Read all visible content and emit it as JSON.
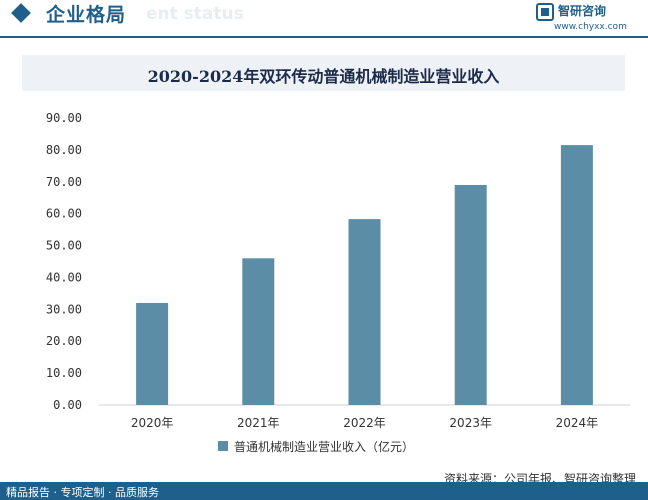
{
  "header": {
    "title": "企业格局",
    "subtitle": "ent status",
    "brand_name": "智研咨询",
    "brand_url": "www.chyxx.com"
  },
  "footer": {
    "source": "资料来源：公司年报、智研咨询整理",
    "slogan": "精品报告 · 专项定制 · 品质服务"
  },
  "colors": {
    "bar": "#5b8ea6",
    "brand": "#1f5f8b"
  },
  "chart_data": {
    "type": "bar",
    "title": "2020-2024年双环传动普通机械制造业营业收入",
    "xlabel": "",
    "ylabel": "",
    "categories": [
      "2020年",
      "2021年",
      "2022年",
      "2023年",
      "2024年"
    ],
    "series": [
      {
        "name": "普通机械制造业营业收入（亿元）",
        "values": [
          32.0,
          46.0,
          58.3,
          69.0,
          81.5
        ]
      }
    ],
    "ylim": [
      0,
      90
    ],
    "yticks": [
      "0.00",
      "10.00",
      "20.00",
      "30.00",
      "40.00",
      "50.00",
      "60.00",
      "70.00",
      "80.00",
      "90.00"
    ],
    "grid": false,
    "legend": "bottom-center"
  }
}
